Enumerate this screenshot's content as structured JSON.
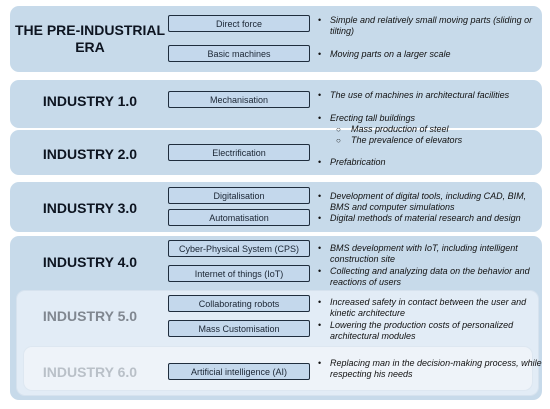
{
  "eras": [
    {
      "name": "THE PRE-INDUSTRIAL ERA"
    },
    {
      "name": "INDUSTRY 1.0"
    },
    {
      "name": "INDUSTRY 2.0"
    },
    {
      "name": "INDUSTRY 3.0"
    },
    {
      "name": "INDUSTRY 4.0"
    },
    {
      "name": "INDUSTRY 5.0"
    },
    {
      "name": "INDUSTRY 6.0"
    }
  ],
  "technologies": [
    "Direct force",
    "Basic machines",
    "Mechanisation",
    "Electrification",
    "Digitalisation",
    "Automatisation",
    "Cyber-Physical System (CPS)",
    "Internet of things (IoT)",
    "Collaborating robots",
    "Mass Customisation",
    "Artificial intelligence (AI)"
  ],
  "descriptions": [
    "Simple and relatively small moving parts (sliding or tilting)",
    "Moving parts on a larger scale",
    "The use of machines in architectural facilities",
    "Erecting tall buildings",
    "Prefabrication",
    "Development of digital tools, including CAD, BIM, BMS and computer simulations",
    "Digital methods of material research and design",
    "BMS development with IoT, including intelligent construction site",
    "Collecting and analyzing data on the behavior and reactions of users",
    "Increased safety in contact between the user and kinetic architecture",
    "Lowering the production costs of personalized architectural modules",
    "Replacing man in the decision-making process, while respecting his needs"
  ],
  "sub_items": [
    "Mass production of steel",
    "The prevalence of elevators"
  ],
  "bullet_glyph": "•",
  "sub_bullet_glyph": "○",
  "colors": {
    "band": "#c7daea",
    "band_industry5": "#e2ecf6",
    "band_industry6": "#eef3f9",
    "tech_box_fill": "#c4d8ec",
    "tech_box_border": "#1f2d3d"
  }
}
